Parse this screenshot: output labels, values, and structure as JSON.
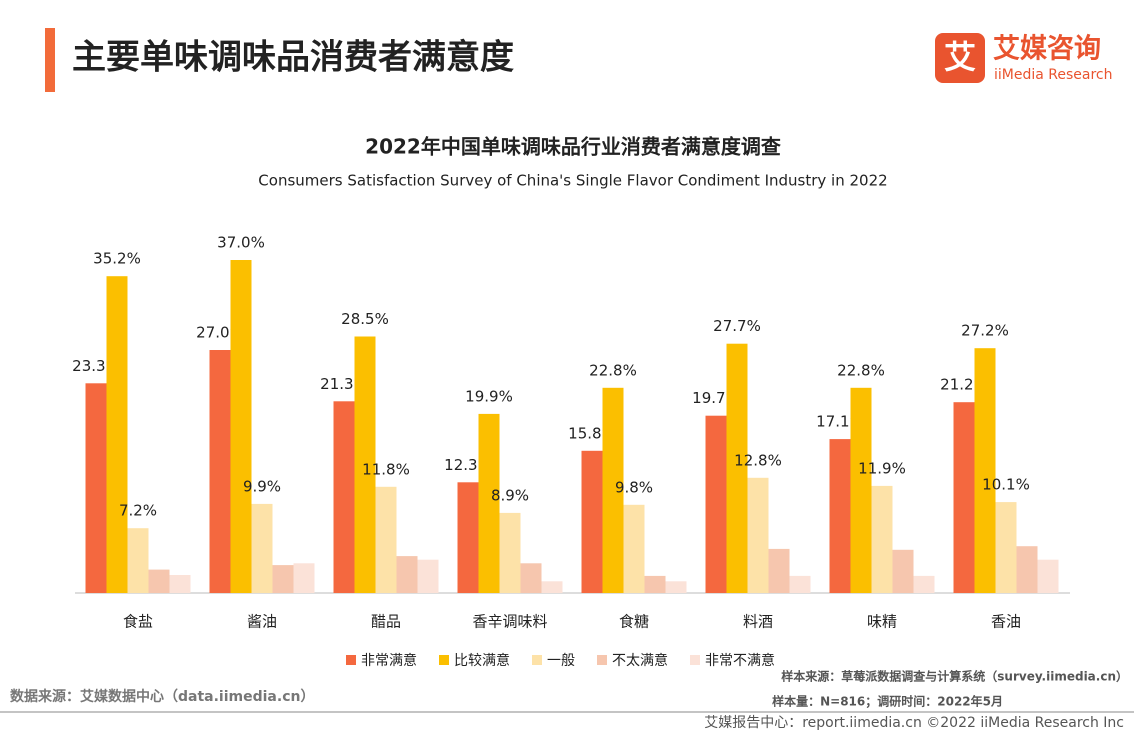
{
  "header": {
    "title": "主要单味调味品消费者满意度",
    "logo_cn": "艾媒咨询",
    "logo_en": "iiMedia Research",
    "logo_icon": "艾"
  },
  "chart_data": {
    "type": "bar",
    "title": "2022年中国单味调味品行业消费者满意度调查",
    "subtitle": "Consumers Satisfaction Survey of China's Single Flavor Condiment Industry in 2022",
    "categories": [
      "食盐",
      "酱油",
      "醋品",
      "香辛调味料",
      "食糖",
      "料酒",
      "味精",
      "香油"
    ],
    "series": [
      {
        "name": "非常满意",
        "color": "#f4683f",
        "values": [
          23.3,
          27.0,
          21.3,
          12.3,
          15.8,
          19.7,
          17.1,
          21.2
        ],
        "value_labels": [
          "23.3%",
          "27.0%",
          "21.3%",
          "12.3%",
          "15.8%",
          "19.7%",
          "17.1%",
          "21.2%"
        ]
      },
      {
        "name": "比较满意",
        "color": "#fbbf00",
        "values": [
          35.2,
          37.0,
          28.5,
          19.9,
          22.8,
          27.7,
          22.8,
          27.2
        ],
        "value_labels": [
          "35.2%",
          "37.0%",
          "28.5%",
          "19.9%",
          "22.8%",
          "27.7%",
          "22.8%",
          "27.2%"
        ]
      },
      {
        "name": "一般",
        "color": "#fde2a8",
        "values": [
          7.2,
          9.9,
          11.8,
          8.9,
          9.8,
          12.8,
          11.9,
          10.1
        ],
        "value_labels": [
          "7.2%",
          "9.9%",
          "11.8%",
          "8.9%",
          "9.8%",
          "12.8%",
          "11.9%",
          "10.1%"
        ]
      },
      {
        "name": "不太满意",
        "color": "#f6c6ae",
        "values": [
          2.6,
          3.1,
          4.1,
          3.3,
          1.9,
          4.9,
          4.8,
          5.2
        ]
      },
      {
        "name": "非常不满意",
        "color": "#fbe2d8",
        "values": [
          2.0,
          3.3,
          3.7,
          1.3,
          1.3,
          1.9,
          1.9,
          3.7
        ]
      }
    ]
  },
  "sources": {
    "left": "数据来源：艾媒数据中心（data.iimedia.cn）",
    "sample_source": "样本来源：草莓派数据调查与计算系统（survey.iimedia.cn）",
    "sample_size": "样本量：N=816；调研时间：2022年5月"
  },
  "footer": {
    "text": "艾媒报告中心：report.iimedia.cn   ©2022  iiMedia Research  Inc"
  }
}
